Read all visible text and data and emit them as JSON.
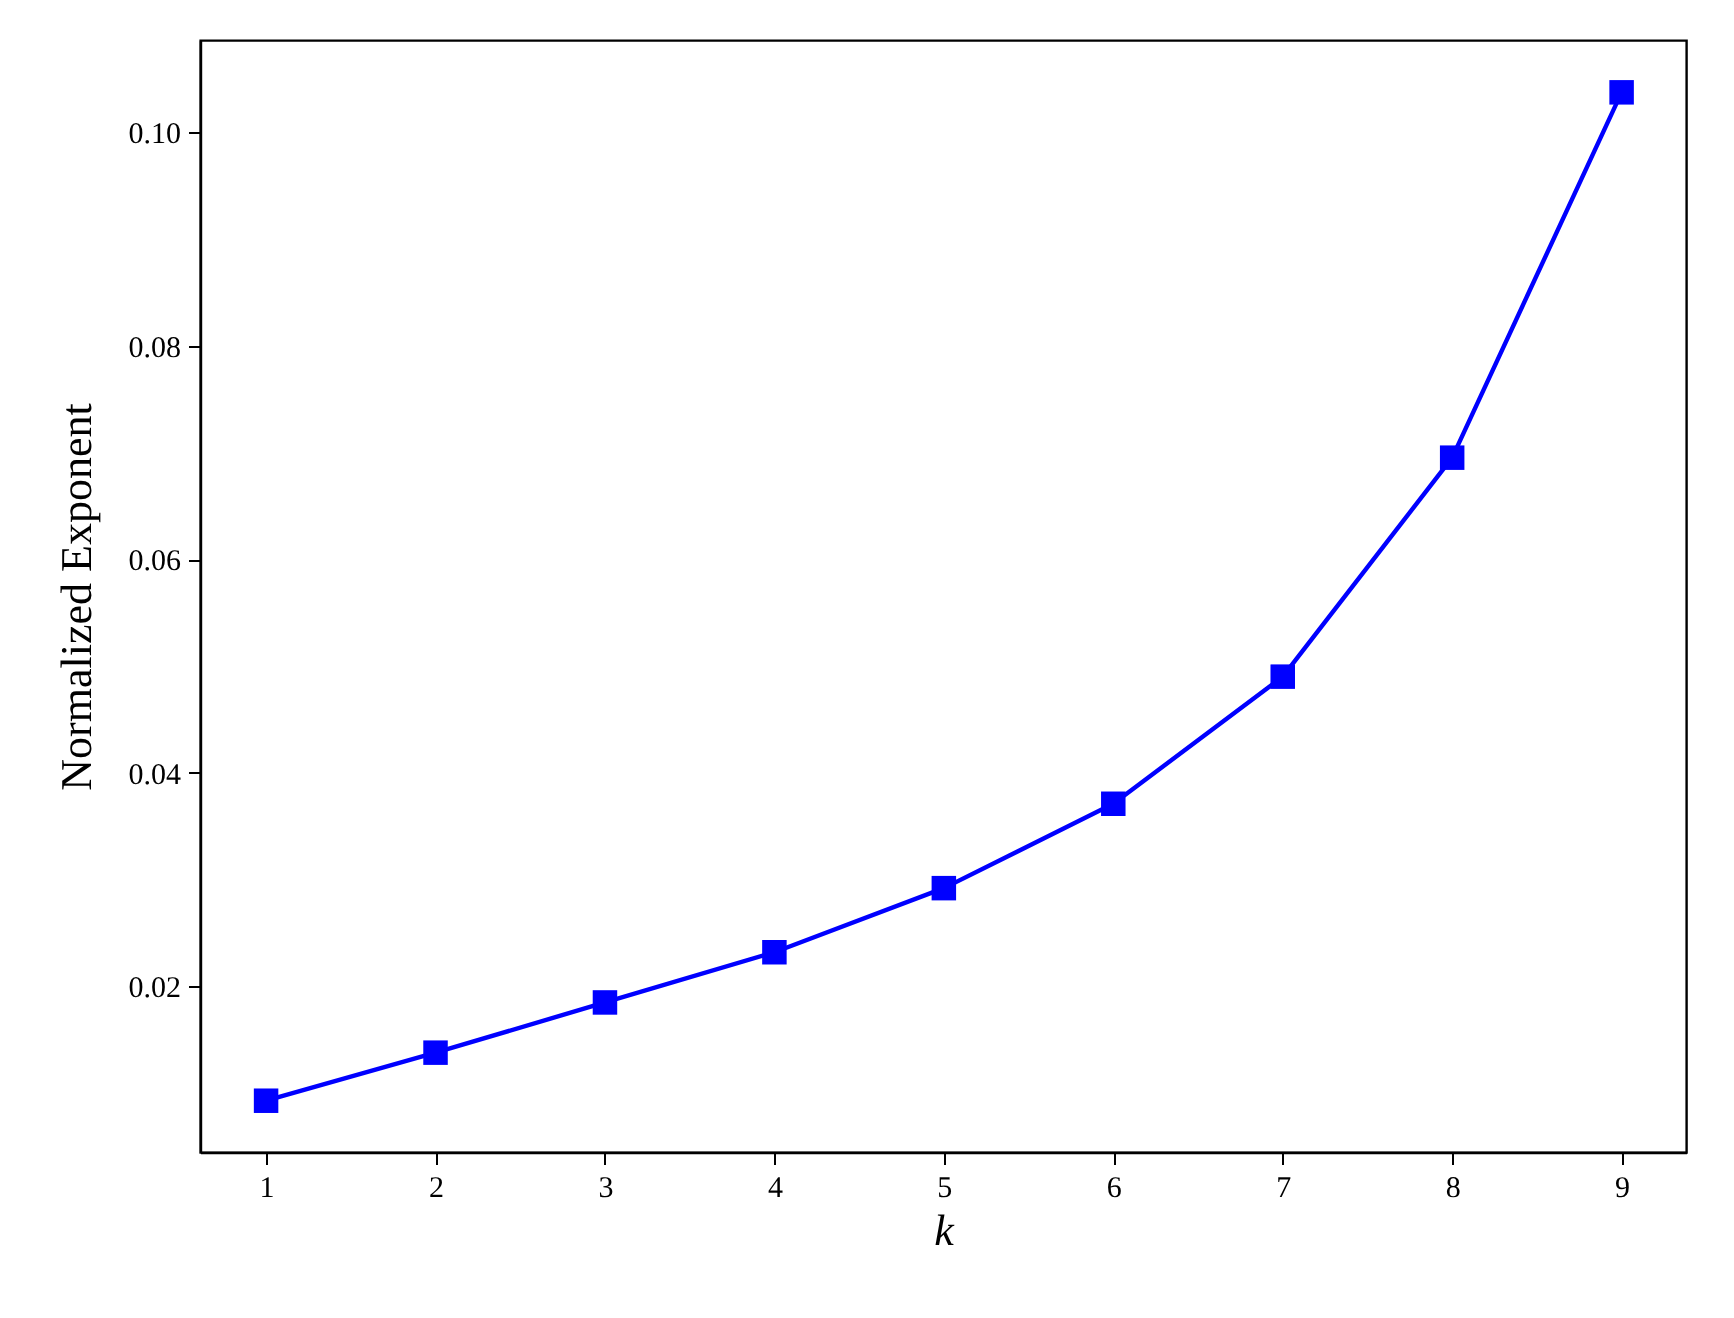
{
  "chart_data": {
    "type": "line",
    "xlabel": "k",
    "ylabel": "Normalized Exponent",
    "x": [
      1,
      2,
      3,
      4,
      5,
      6,
      7,
      8,
      9
    ],
    "series": [
      {
        "color": "#0000ff",
        "values": [
          0.0093,
          0.0138,
          0.0185,
          0.0232,
          0.0292,
          0.0371,
          0.049,
          0.0695,
          0.1037
        ]
      }
    ],
    "xlim": [
      0.61,
      9.38
    ],
    "ylim": [
      0.0045,
      0.1086
    ],
    "xticks": [
      1,
      2,
      3,
      4,
      5,
      6,
      7,
      8,
      9
    ],
    "yticks": [
      {
        "value": 0.02,
        "label": "0.02"
      },
      {
        "value": 0.04,
        "label": "0.04"
      },
      {
        "value": 0.06,
        "label": "0.06"
      },
      {
        "value": 0.08,
        "label": "0.08"
      },
      {
        "value": 0.1,
        "label": "0.10"
      }
    ],
    "marker": "square",
    "line_style": "solid",
    "grid": false
  }
}
